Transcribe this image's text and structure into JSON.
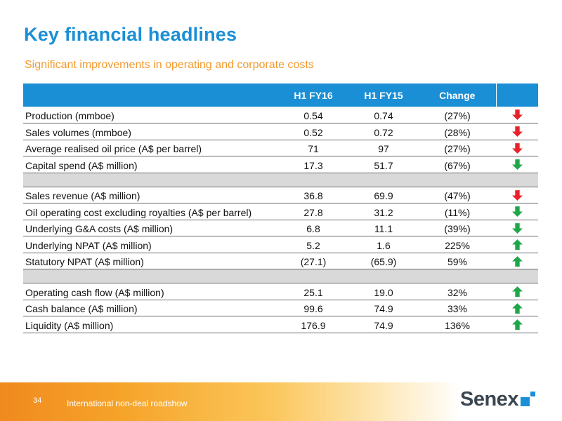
{
  "slide": {
    "title": "Key financial headlines",
    "subtitle": "Significant improvements in operating and corporate costs",
    "page_number": "34",
    "footer_text": "International non-deal roadshow",
    "logo_text": "Senex"
  },
  "colors": {
    "accent_blue": "#1b8fd6",
    "subtitle_orange": "#f39a2e",
    "arrow_down_red": "#e8212a",
    "arrow_green": "#1fa64a",
    "separator_grey": "#d9d9d9"
  },
  "table": {
    "headers": [
      "",
      "H1 FY16",
      "H1 FY15",
      "Change",
      ""
    ],
    "rows": [
      {
        "label": "Production (mmboe)",
        "h1fy16": "0.54",
        "h1fy15": "0.74",
        "change": "(27%)",
        "arrow": "red-down"
      },
      {
        "label": "Sales volumes (mmboe)",
        "h1fy16": "0.52",
        "h1fy15": "0.72",
        "change": "(28%)",
        "arrow": "red-down"
      },
      {
        "label": "Average realised oil price (A$ per barrel)",
        "h1fy16": "71",
        "h1fy15": "97",
        "change": "(27%)",
        "arrow": "red-down"
      },
      {
        "label": "Capital spend (A$ million)",
        "h1fy16": "17.3",
        "h1fy15": "51.7",
        "change": "(67%)",
        "arrow": "green-down"
      },
      {
        "separator": true
      },
      {
        "label": "Sales revenue (A$ million)",
        "h1fy16": "36.8",
        "h1fy15": "69.9",
        "change": "(47%)",
        "arrow": "red-down"
      },
      {
        "label": "Oil operating cost excluding royalties (A$ per barrel)",
        "h1fy16": "27.8",
        "h1fy15": "31.2",
        "change": "(11%)",
        "arrow": "green-down"
      },
      {
        "label": "Underlying G&A costs (A$ million)",
        "h1fy16": "6.8",
        "h1fy15": "11.1",
        "change": "(39%)",
        "arrow": "green-down"
      },
      {
        "label": "Underlying NPAT (A$ million)",
        "h1fy16": "5.2",
        "h1fy15": "1.6",
        "change": "225%",
        "arrow": "green-up"
      },
      {
        "label": "Statutory NPAT (A$ million)",
        "h1fy16": "(27.1)",
        "h1fy15": "(65.9)",
        "change": "59%",
        "arrow": "green-up"
      },
      {
        "separator": true
      },
      {
        "label": "Operating cash flow (A$ million)",
        "h1fy16": "25.1",
        "h1fy15": "19.0",
        "change": "32%",
        "arrow": "green-up"
      },
      {
        "label": "Cash balance (A$ million)",
        "h1fy16": "99.6",
        "h1fy15": "74.9",
        "change": "33%",
        "arrow": "green-up"
      },
      {
        "label": "Liquidity (A$ million)",
        "h1fy16": "176.9",
        "h1fy15": "74.9",
        "change": "136%",
        "arrow": "green-up"
      }
    ]
  }
}
